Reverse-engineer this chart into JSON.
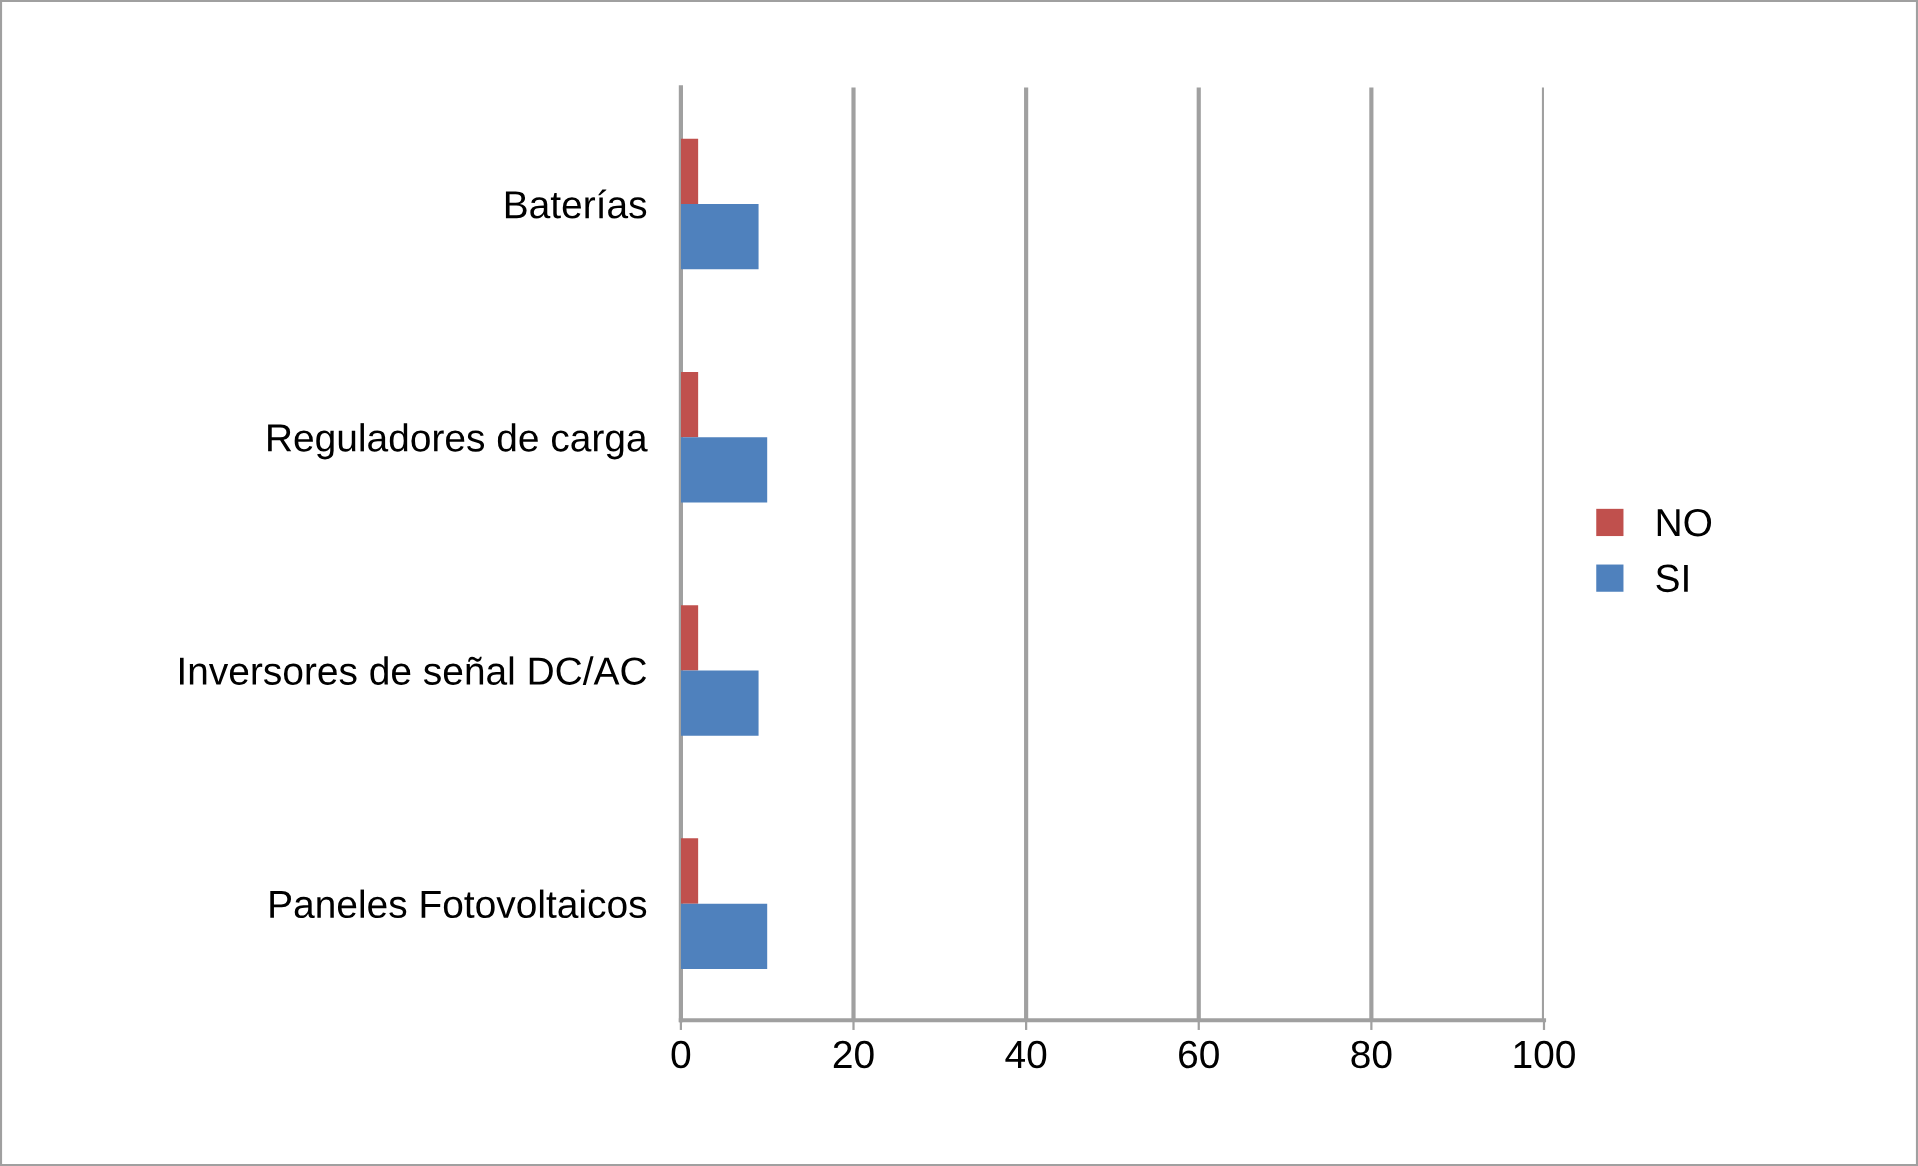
{
  "chart_data": {
    "type": "bar",
    "orientation": "horizontal",
    "categories": [
      "Baterías",
      "Reguladores de carga",
      "Inversores de señal DC/AC",
      "Paneles Fotovoltaicos"
    ],
    "series": [
      {
        "name": "NO",
        "color": "#c0504d",
        "values": [
          2,
          2,
          2,
          2
        ]
      },
      {
        "name": "SI",
        "color": "#4f81bd",
        "values": [
          9,
          10,
          9,
          10
        ]
      }
    ],
    "xlim": [
      0,
      100
    ],
    "xticks": [
      0,
      20,
      40,
      60,
      80,
      100
    ],
    "grid": "x",
    "legend": "right"
  }
}
